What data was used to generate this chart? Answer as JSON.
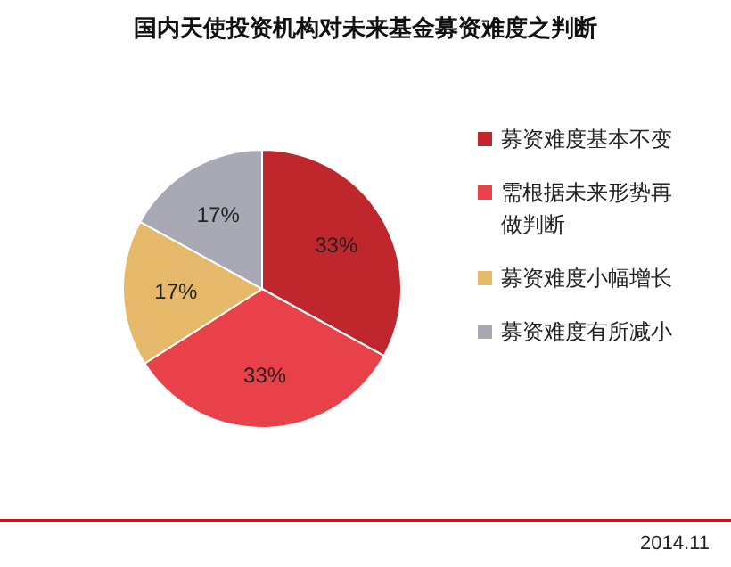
{
  "chart_data": {
    "type": "pie",
    "title": "国内天使投资机构对未来基金募资难度之判断",
    "categories": [
      "募资难度基本不变",
      "需根据未来形势再做判断",
      "募资难度小幅增长",
      "募资难度有所减小"
    ],
    "values": [
      33,
      33,
      17,
      17
    ],
    "colors": [
      "#c0272d",
      "#e8414a",
      "#e6b96a",
      "#a8a9b4"
    ],
    "value_labels": [
      "33%",
      "33%",
      "17%",
      "17%"
    ],
    "legend": "right",
    "annotations": [
      "2014.11"
    ]
  }
}
